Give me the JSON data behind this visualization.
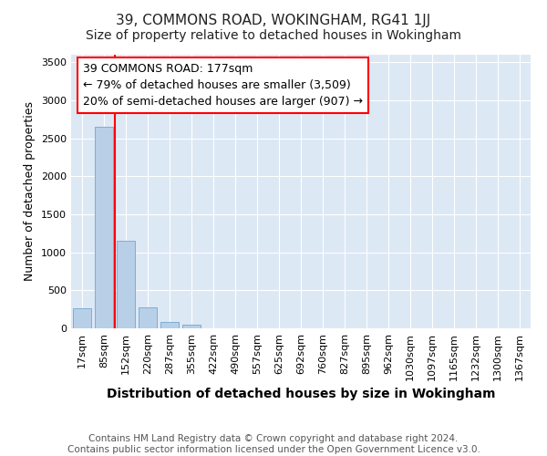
{
  "title": "39, COMMONS ROAD, WOKINGHAM, RG41 1JJ",
  "subtitle": "Size of property relative to detached houses in Wokingham",
  "xlabel": "Distribution of detached houses by size in Wokingham",
  "ylabel": "Number of detached properties",
  "bar_color": "#b8cfe8",
  "bar_edge_color": "#7aafd4",
  "background_color": "#dde8f5",
  "grid_color": "#ffffff",
  "categories": [
    "17sqm",
    "85sqm",
    "152sqm",
    "220sqm",
    "287sqm",
    "355sqm",
    "422sqm",
    "490sqm",
    "557sqm",
    "625sqm",
    "692sqm",
    "760sqm",
    "827sqm",
    "895sqm",
    "962sqm",
    "1030sqm",
    "1097sqm",
    "1165sqm",
    "1232sqm",
    "1300sqm",
    "1367sqm"
  ],
  "values": [
    270,
    2650,
    1150,
    275,
    85,
    50,
    0,
    0,
    0,
    0,
    0,
    0,
    0,
    0,
    0,
    0,
    0,
    0,
    0,
    0,
    0
  ],
  "red_line_x": 1.5,
  "annotation_text": "39 COMMONS ROAD: 177sqm\n← 79% of detached houses are smaller (3,509)\n20% of semi-detached houses are larger (907) →",
  "ylim": [
    0,
    3600
  ],
  "yticks": [
    0,
    500,
    1000,
    1500,
    2000,
    2500,
    3000,
    3500
  ],
  "footer_text": "Contains HM Land Registry data © Crown copyright and database right 2024.\nContains public sector information licensed under the Open Government Licence v3.0.",
  "title_fontsize": 11,
  "subtitle_fontsize": 10,
  "xlabel_fontsize": 10,
  "ylabel_fontsize": 9,
  "annotation_fontsize": 9,
  "tick_fontsize": 8,
  "footer_fontsize": 7.5
}
